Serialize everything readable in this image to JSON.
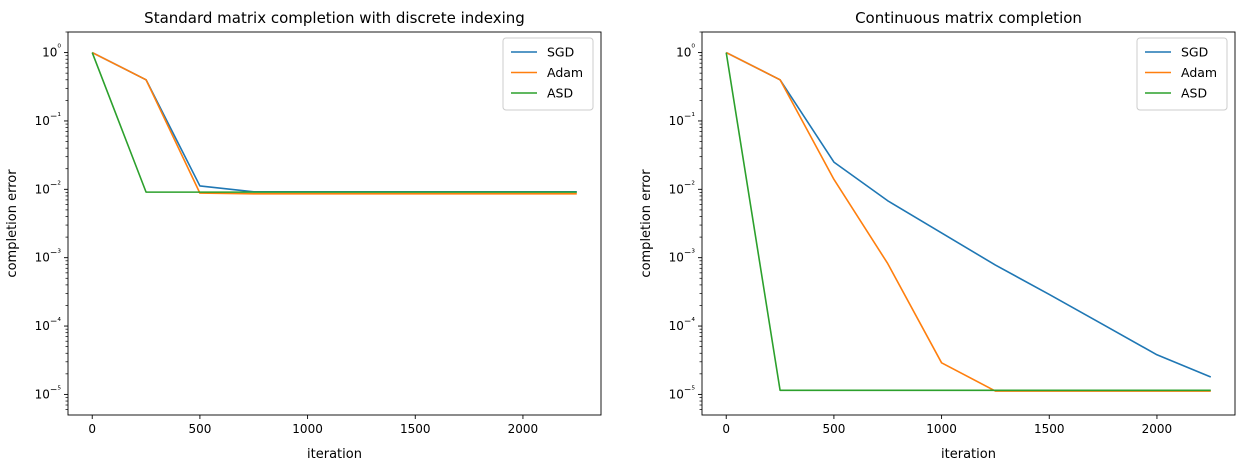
{
  "chart_data": [
    {
      "type": "line",
      "title": "Standard matrix completion with discrete indexing",
      "xlabel": "iteration",
      "ylabel": "completion error",
      "yscale": "log",
      "xlim": [
        -112.5,
        2362.5
      ],
      "ylim": [
        5e-06,
        2
      ],
      "xticks": [
        0,
        500,
        1000,
        1500,
        2000
      ],
      "yticks": [
        -5,
        -4,
        -3,
        -2,
        -1,
        0
      ],
      "legend": "top-right",
      "grid": false,
      "x": [
        0,
        250,
        500,
        750,
        1000,
        1250,
        1500,
        1750,
        2000,
        2250
      ],
      "series": [
        {
          "name": "SGD",
          "color": "#1f77b4",
          "values": [
            1.0,
            0.4,
            0.0112,
            0.0092,
            0.0092,
            0.0092,
            0.0092,
            0.0092,
            0.0092,
            0.0092
          ]
        },
        {
          "name": "Adam",
          "color": "#ff7f0e",
          "values": [
            1.0,
            0.4,
            0.0088,
            0.0086,
            0.0086,
            0.0086,
            0.0086,
            0.0086,
            0.0086,
            0.0086
          ]
        },
        {
          "name": "ASD",
          "color": "#2ca02c",
          "values": [
            1.0,
            0.0091,
            0.0091,
            0.0091,
            0.0091,
            0.0091,
            0.0091,
            0.0091,
            0.0091,
            0.0091
          ]
        }
      ]
    },
    {
      "type": "line",
      "title": "Continuous matrix completion",
      "xlabel": "iteration",
      "ylabel": "completion error",
      "yscale": "log",
      "xlim": [
        -112.5,
        2362.5
      ],
      "ylim": [
        5e-06,
        2
      ],
      "xticks": [
        0,
        500,
        1000,
        1500,
        2000
      ],
      "yticks": [
        -5,
        -4,
        -3,
        -2,
        -1,
        0
      ],
      "legend": "top-right",
      "grid": false,
      "x": [
        0,
        250,
        500,
        750,
        1000,
        1250,
        1500,
        1750,
        2000,
        2250
      ],
      "series": [
        {
          "name": "SGD",
          "color": "#1f77b4",
          "values": [
            1.0,
            0.4,
            0.025,
            0.0068,
            0.0023,
            0.00078,
            0.00029,
            0.000105,
            3.8e-05,
            1.8e-05
          ]
        },
        {
          "name": "Adam",
          "color": "#ff7f0e",
          "values": [
            1.0,
            0.4,
            0.014,
            0.00082,
            2.9e-05,
            1.12e-05,
            1.12e-05,
            1.12e-05,
            1.12e-05,
            1.12e-05
          ]
        },
        {
          "name": "ASD",
          "color": "#2ca02c",
          "values": [
            1.0,
            1.15e-05,
            1.15e-05,
            1.15e-05,
            1.15e-05,
            1.15e-05,
            1.15e-05,
            1.15e-05,
            1.15e-05,
            1.15e-05
          ]
        }
      ]
    }
  ]
}
